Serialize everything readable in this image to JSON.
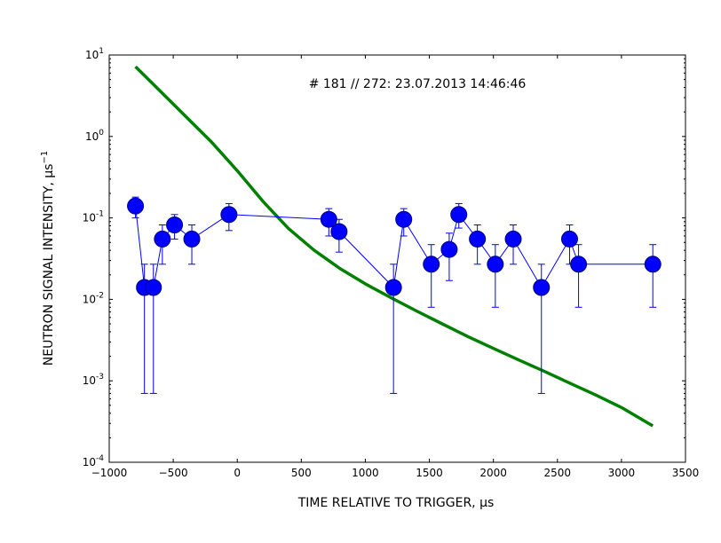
{
  "chart_data": {
    "type": "scatter",
    "annotation": "# 181 // 272: 23.07.2013 14:46:46",
    "xlabel": "TIME RELATIVE TO TRIGGER, μs",
    "ylabel": "NEUTRON SIGNAL INTENSITY, μs",
    "ylabel_exponent": "−1",
    "xscale": "linear",
    "yscale": "log",
    "xlim": [
      -1000,
      3500
    ],
    "ylim": [
      0.0001,
      10
    ],
    "grid": false,
    "x_ticks": [
      {
        "value": -1000,
        "label": "−1000"
      },
      {
        "value": -500,
        "label": "−500"
      },
      {
        "value": 0,
        "label": "0"
      },
      {
        "value": 500,
        "label": "500"
      },
      {
        "value": 1000,
        "label": "1000"
      },
      {
        "value": 1500,
        "label": "1500"
      },
      {
        "value": 2000,
        "label": "2000"
      },
      {
        "value": 2500,
        "label": "2500"
      },
      {
        "value": 3000,
        "label": "3000"
      },
      {
        "value": 3500,
        "label": "3500"
      }
    ],
    "y_ticks": [
      {
        "value": 0.0001,
        "mantissa": "10",
        "exponent": "-4"
      },
      {
        "value": 0.001,
        "mantissa": "10",
        "exponent": "-3"
      },
      {
        "value": 0.01,
        "mantissa": "10",
        "exponent": "-2"
      },
      {
        "value": 0.1,
        "mantissa": "10",
        "exponent": "-1"
      },
      {
        "value": 1,
        "mantissa": "10",
        "exponent": "0"
      },
      {
        "value": 10,
        "mantissa": "10",
        "exponent": "1"
      }
    ],
    "series": [
      {
        "kind": "markers-with-errorbars",
        "color": "#0000ff",
        "points": [
          {
            "x": -795,
            "y": 0.14,
            "lo": 0.1,
            "hi": 0.18
          },
          {
            "x": -725,
            "y": 0.014,
            "lo": 0.0007,
            "hi": 0.027
          },
          {
            "x": -655,
            "y": 0.014,
            "lo": 0.0007,
            "hi": 0.027
          },
          {
            "x": -585,
            "y": 0.055,
            "lo": 0.027,
            "hi": 0.082
          },
          {
            "x": -490,
            "y": 0.082,
            "lo": 0.055,
            "hi": 0.11
          },
          {
            "x": -355,
            "y": 0.055,
            "lo": 0.027,
            "hi": 0.082
          },
          {
            "x": -65,
            "y": 0.11,
            "lo": 0.07,
            "hi": 0.15
          },
          {
            "x": 715,
            "y": 0.096,
            "lo": 0.06,
            "hi": 0.13
          },
          {
            "x": 795,
            "y": 0.068,
            "lo": 0.038,
            "hi": 0.096
          },
          {
            "x": 1220,
            "y": 0.014,
            "lo": 0.0007,
            "hi": 0.027
          },
          {
            "x": 1300,
            "y": 0.096,
            "lo": 0.06,
            "hi": 0.13
          },
          {
            "x": 1515,
            "y": 0.027,
            "lo": 0.008,
            "hi": 0.047
          },
          {
            "x": 1655,
            "y": 0.041,
            "lo": 0.017,
            "hi": 0.065
          },
          {
            "x": 1730,
            "y": 0.11,
            "lo": 0.075,
            "hi": 0.15
          },
          {
            "x": 1875,
            "y": 0.055,
            "lo": 0.027,
            "hi": 0.082
          },
          {
            "x": 2015,
            "y": 0.027,
            "lo": 0.008,
            "hi": 0.047
          },
          {
            "x": 2155,
            "y": 0.055,
            "lo": 0.027,
            "hi": 0.082
          },
          {
            "x": 2375,
            "y": 0.014,
            "lo": 0.0007,
            "hi": 0.027
          },
          {
            "x": 2595,
            "y": 0.055,
            "lo": 0.027,
            "hi": 0.082
          },
          {
            "x": 2665,
            "y": 0.027,
            "lo": 0.008,
            "hi": 0.047
          },
          {
            "x": 3245,
            "y": 0.027,
            "lo": 0.008,
            "hi": 0.047
          }
        ]
      },
      {
        "kind": "line",
        "color": "#008000",
        "points": [
          {
            "x": -795,
            "y": 7.2
          },
          {
            "x": -500,
            "y": 2.5
          },
          {
            "x": -200,
            "y": 0.85
          },
          {
            "x": 0,
            "y": 0.38
          },
          {
            "x": 200,
            "y": 0.16
          },
          {
            "x": 400,
            "y": 0.074
          },
          {
            "x": 600,
            "y": 0.04
          },
          {
            "x": 800,
            "y": 0.024
          },
          {
            "x": 1000,
            "y": 0.0155
          },
          {
            "x": 1200,
            "y": 0.0105
          },
          {
            "x": 1400,
            "y": 0.0072
          },
          {
            "x": 1600,
            "y": 0.005
          },
          {
            "x": 1800,
            "y": 0.0035
          },
          {
            "x": 2000,
            "y": 0.0025
          },
          {
            "x": 2200,
            "y": 0.0018
          },
          {
            "x": 2400,
            "y": 0.0013
          },
          {
            "x": 2600,
            "y": 0.00093
          },
          {
            "x": 2800,
            "y": 0.00067
          },
          {
            "x": 3000,
            "y": 0.00047
          },
          {
            "x": 3245,
            "y": 0.00028
          }
        ]
      }
    ]
  }
}
